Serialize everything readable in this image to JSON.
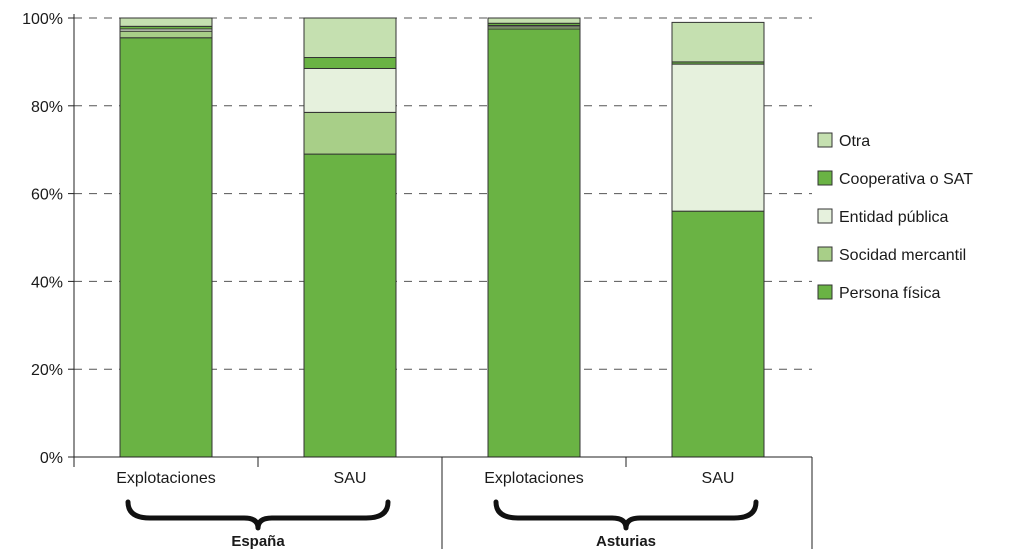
{
  "chart_data": {
    "type": "bar",
    "stacked": true,
    "ylim": [
      0,
      100
    ],
    "yticks": [
      "0%",
      "20%",
      "40%",
      "60%",
      "80%",
      "100%"
    ],
    "grid": "dashed-horizontal",
    "legend_position": "right",
    "categories": [
      "Explotaciones",
      "SAU",
      "Explotaciones",
      "SAU"
    ],
    "groups": [
      {
        "label": "España",
        "categories": [
          "Explotaciones",
          "SAU"
        ]
      },
      {
        "label": "Asturias",
        "categories": [
          "Explotaciones",
          "SAU"
        ]
      }
    ],
    "series": [
      {
        "name": "Persona física",
        "color": "#6ab344",
        "values": [
          95.5,
          69,
          97.5,
          56
        ]
      },
      {
        "name": "Socidad mercantil",
        "color": "#a8cf88",
        "values": [
          1.5,
          9.5,
          0.5,
          0
        ]
      },
      {
        "name": "Entidad pública",
        "color": "#e6f1dd",
        "values": [
          0.5,
          10,
          0.3,
          33.5
        ]
      },
      {
        "name": "Cooperativa o SAT",
        "color": "#6ab344",
        "values": [
          0.6,
          2.5,
          0.5,
          0.5
        ]
      },
      {
        "name": "Otra",
        "color": "#c5e0b0",
        "values": [
          1.9,
          9,
          1.2,
          9
        ]
      }
    ],
    "legend_order": [
      "Otra",
      "Cooperativa o SAT",
      "Entidad pública",
      "Socidad mercantil",
      "Persona física"
    ]
  }
}
